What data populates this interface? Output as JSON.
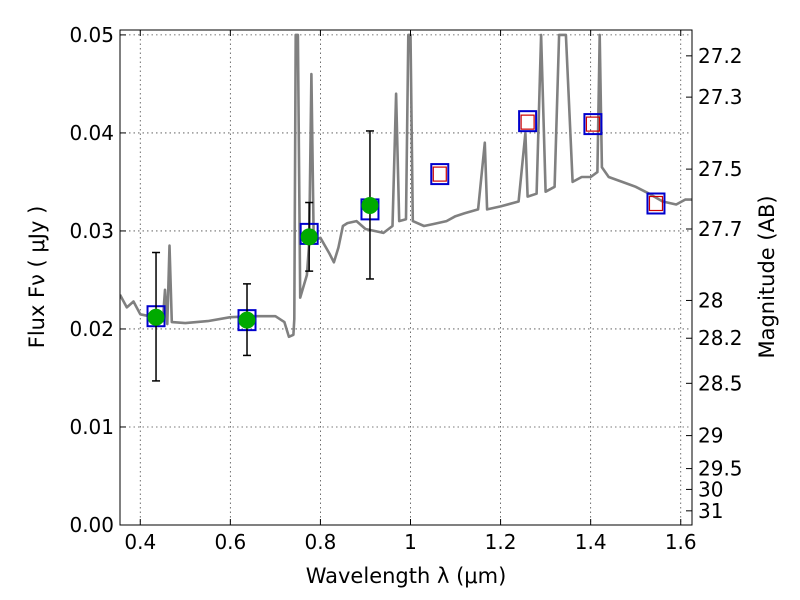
{
  "chart_data": {
    "type": "scatter",
    "xlabel": "Wavelength  λ (μm)",
    "ylabel": "Flux  Fν  ( μJy )",
    "y2label": "Magnitude (AB)",
    "xlim": [
      0.355,
      1.625
    ],
    "ylim": [
      0.0,
      0.0505
    ],
    "x_ticks": [
      0.4,
      0.6,
      0.8,
      1.0,
      1.2,
      1.4,
      1.6
    ],
    "x_tick_labels": [
      "0.4",
      "0.6",
      "0.8",
      "1",
      "1.2",
      "1.4",
      "1.6"
    ],
    "y_ticks": [
      0.0,
      0.01,
      0.02,
      0.03,
      0.04,
      0.05
    ],
    "y_tick_labels": [
      "0.00",
      "0.01",
      "0.02",
      "0.03",
      "0.04",
      "0.05"
    ],
    "mag_ticks": [
      27.2,
      27.3,
      27.5,
      27.7,
      28,
      28.2,
      28.5,
      29,
      29.5,
      30,
      31
    ],
    "mag_tick_labels": [
      "27.2",
      "27.3",
      "27.5",
      "27.7",
      "28",
      "28.2",
      "28.5",
      "29",
      "29.5",
      "30",
      "31"
    ],
    "grid": true,
    "colors": {
      "template": "#808080",
      "observed": "#00aa00",
      "model": "#0000cc",
      "predicted": "#cc0000",
      "errorbar": "#000000"
    },
    "series": [
      {
        "kind": "template_spectrum",
        "points": [
          [
            0.355,
            0.0235
          ],
          [
            0.37,
            0.0222
          ],
          [
            0.385,
            0.0228
          ],
          [
            0.4,
            0.0215
          ],
          [
            0.42,
            0.0213
          ],
          [
            0.45,
            0.0208
          ],
          [
            0.455,
            0.024
          ],
          [
            0.46,
            0.0205
          ],
          [
            0.465,
            0.0285
          ],
          [
            0.47,
            0.0207
          ],
          [
            0.5,
            0.0206
          ],
          [
            0.55,
            0.0208
          ],
          [
            0.6,
            0.0212
          ],
          [
            0.65,
            0.0213
          ],
          [
            0.7,
            0.0213
          ],
          [
            0.72,
            0.0207
          ],
          [
            0.73,
            0.0192
          ],
          [
            0.74,
            0.0194
          ],
          [
            0.742,
            0.021
          ],
          [
            0.745,
            0.05
          ],
          [
            0.75,
            0.05
          ],
          [
            0.755,
            0.0232
          ],
          [
            0.77,
            0.0255
          ],
          [
            0.775,
            0.0288
          ],
          [
            0.78,
            0.046
          ],
          [
            0.785,
            0.029
          ],
          [
            0.8,
            0.0293
          ],
          [
            0.82,
            0.0277
          ],
          [
            0.83,
            0.0268
          ],
          [
            0.84,
            0.0283
          ],
          [
            0.85,
            0.0305
          ],
          [
            0.86,
            0.0308
          ],
          [
            0.88,
            0.031
          ],
          [
            0.9,
            0.0302
          ],
          [
            0.94,
            0.0298
          ],
          [
            0.96,
            0.0305
          ],
          [
            0.968,
            0.044
          ],
          [
            0.975,
            0.031
          ],
          [
            0.99,
            0.0312
          ],
          [
            0.995,
            0.05
          ],
          [
            1.0,
            0.05
          ],
          [
            1.005,
            0.031
          ],
          [
            1.03,
            0.0305
          ],
          [
            1.05,
            0.0307
          ],
          [
            1.08,
            0.031
          ],
          [
            1.1,
            0.0315
          ],
          [
            1.12,
            0.0318
          ],
          [
            1.15,
            0.0322
          ],
          [
            1.165,
            0.039
          ],
          [
            1.17,
            0.0322
          ],
          [
            1.2,
            0.0325
          ],
          [
            1.24,
            0.033
          ],
          [
            1.255,
            0.04
          ],
          [
            1.26,
            0.0335
          ],
          [
            1.28,
            0.0338
          ],
          [
            1.29,
            0.05
          ],
          [
            1.3,
            0.034
          ],
          [
            1.32,
            0.0345
          ],
          [
            1.33,
            0.05
          ],
          [
            1.345,
            0.05
          ],
          [
            1.36,
            0.035
          ],
          [
            1.38,
            0.0355
          ],
          [
            1.4,
            0.0355
          ],
          [
            1.415,
            0.036
          ],
          [
            1.42,
            0.05
          ],
          [
            1.425,
            0.0365
          ],
          [
            1.44,
            0.0355
          ],
          [
            1.47,
            0.035
          ],
          [
            1.5,
            0.0345
          ],
          [
            1.53,
            0.0338
          ],
          [
            1.56,
            0.033
          ],
          [
            1.59,
            0.0327
          ],
          [
            1.61,
            0.0332
          ],
          [
            1.625,
            0.0332
          ]
        ]
      },
      {
        "kind": "observed_flux",
        "points": [
          {
            "x": 0.435,
            "y": 0.0212,
            "err_low": 0.0147,
            "err_high": 0.0278
          },
          {
            "x": 0.637,
            "y": 0.0209,
            "err_low": 0.0173,
            "err_high": 0.0246
          },
          {
            "x": 0.775,
            "y": 0.0294,
            "err_low": 0.0259,
            "err_high": 0.0329
          },
          {
            "x": 0.91,
            "y": 0.0326,
            "err_low": 0.0251,
            "err_high": 0.0402
          }
        ]
      },
      {
        "kind": "model_band_flux",
        "points": [
          [
            0.435,
            0.0213
          ],
          [
            0.637,
            0.0209
          ],
          [
            0.775,
            0.0297
          ],
          [
            0.91,
            0.0322
          ],
          [
            1.065,
            0.0358
          ],
          [
            1.26,
            0.0412
          ],
          [
            1.405,
            0.0409
          ],
          [
            1.545,
            0.0328
          ]
        ]
      },
      {
        "kind": "predicted_band_flux",
        "points": [
          [
            1.065,
            0.0358
          ],
          [
            1.26,
            0.0411
          ],
          [
            1.405,
            0.0409
          ],
          [
            1.545,
            0.0328
          ]
        ]
      }
    ]
  }
}
